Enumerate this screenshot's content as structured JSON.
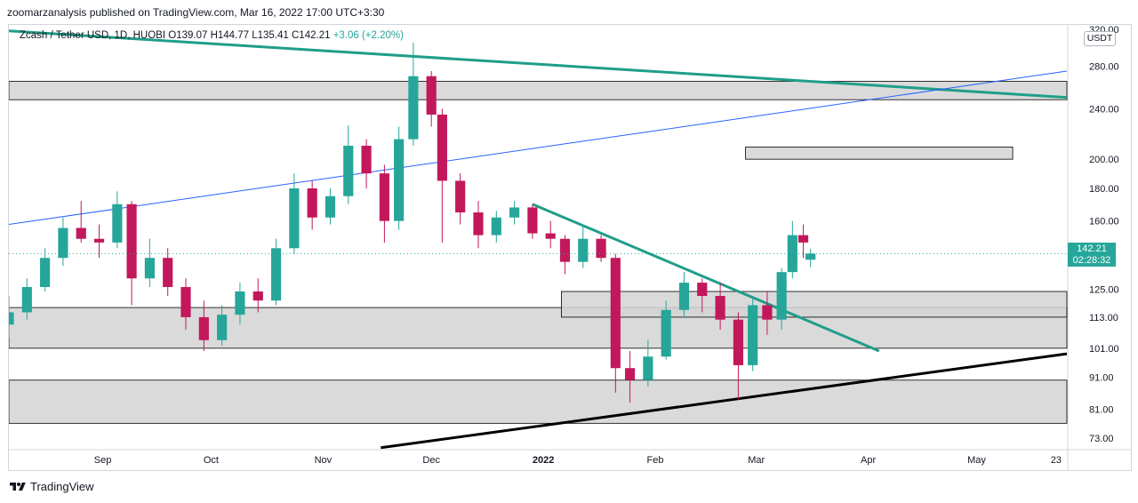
{
  "header": {
    "publisher_line": "zoomarzanalysis published on TradingView.com, Mar 16, 2022 17:00 UTC+3:30"
  },
  "legend": {
    "symbol": "Zcash / Tether USD, 1D, HUOBI",
    "ohlc": "O139.07  H144.77  L135.41  C142.21",
    "change": "+3.06 (+2.20%)"
  },
  "price_axis": {
    "unit": "USDT",
    "last_price": "142.21",
    "countdown": "02:28:32"
  },
  "footer": {
    "brand": "TradingView",
    "logo_icon": "tradingview-logo-icon"
  },
  "colors": {
    "up": "#26a69a",
    "down": "#ef5350",
    "down_wick": "#c2185b",
    "trendline_green": "#1f9e89",
    "trendline_blue": "#2962ff",
    "trendline_black": "#000000",
    "zone_fill": "#d4d4d4"
  },
  "chart_data": {
    "type": "candlestick",
    "y_scale": "log",
    "ylim": [
      70,
      325
    ],
    "y_ticks": [
      320,
      280,
      240,
      200,
      180,
      160,
      125,
      113,
      101,
      91,
      81,
      73
    ],
    "x_ticks": [
      "Sep",
      "Oct",
      "Nov",
      "Dec",
      "2022",
      "Feb",
      "Mar",
      "Apr",
      "May",
      "23"
    ],
    "x_range": [
      "2021-08-06",
      "2022-05-26"
    ],
    "last_close": 142.21,
    "candles": [
      {
        "date": "2021-08-06",
        "o": 110,
        "h": 122,
        "l": 105,
        "c": 115
      },
      {
        "date": "2021-08-11",
        "o": 115,
        "h": 130,
        "l": 112,
        "c": 126
      },
      {
        "date": "2021-08-16",
        "o": 126,
        "h": 145,
        "l": 124,
        "c": 140
      },
      {
        "date": "2021-08-21",
        "o": 140,
        "h": 162,
        "l": 136,
        "c": 156
      },
      {
        "date": "2021-08-26",
        "o": 156,
        "h": 172,
        "l": 148,
        "c": 150
      },
      {
        "date": "2021-08-31",
        "o": 150,
        "h": 158,
        "l": 140,
        "c": 148
      },
      {
        "date": "2021-09-05",
        "o": 148,
        "h": 178,
        "l": 145,
        "c": 170
      },
      {
        "date": "2021-09-09",
        "o": 170,
        "h": 172,
        "l": 118,
        "c": 130
      },
      {
        "date": "2021-09-14",
        "o": 130,
        "h": 150,
        "l": 126,
        "c": 140
      },
      {
        "date": "2021-09-19",
        "o": 140,
        "h": 145,
        "l": 122,
        "c": 126
      },
      {
        "date": "2021-09-24",
        "o": 126,
        "h": 130,
        "l": 108,
        "c": 113
      },
      {
        "date": "2021-09-29",
        "o": 113,
        "h": 120,
        "l": 100,
        "c": 104
      },
      {
        "date": "2021-10-04",
        "o": 104,
        "h": 118,
        "l": 102,
        "c": 114
      },
      {
        "date": "2021-10-09",
        "o": 114,
        "h": 128,
        "l": 110,
        "c": 124
      },
      {
        "date": "2021-10-14",
        "o": 124,
        "h": 130,
        "l": 115,
        "c": 120
      },
      {
        "date": "2021-10-19",
        "o": 120,
        "h": 150,
        "l": 118,
        "c": 145
      },
      {
        "date": "2021-10-24",
        "o": 145,
        "h": 190,
        "l": 142,
        "c": 180
      },
      {
        "date": "2021-10-29",
        "o": 180,
        "h": 185,
        "l": 155,
        "c": 162
      },
      {
        "date": "2021-11-03",
        "o": 162,
        "h": 180,
        "l": 158,
        "c": 175
      },
      {
        "date": "2021-11-08",
        "o": 175,
        "h": 226,
        "l": 170,
        "c": 210
      },
      {
        "date": "2021-11-13",
        "o": 210,
        "h": 215,
        "l": 180,
        "c": 190
      },
      {
        "date": "2021-11-18",
        "o": 190,
        "h": 196,
        "l": 148,
        "c": 160
      },
      {
        "date": "2021-11-22",
        "o": 160,
        "h": 225,
        "l": 155,
        "c": 215
      },
      {
        "date": "2021-11-26",
        "o": 215,
        "h": 305,
        "l": 210,
        "c": 270
      },
      {
        "date": "2021-12-01",
        "o": 270,
        "h": 275,
        "l": 225,
        "c": 235
      },
      {
        "date": "2021-12-04",
        "o": 235,
        "h": 240,
        "l": 148,
        "c": 185
      },
      {
        "date": "2021-12-09",
        "o": 185,
        "h": 190,
        "l": 158,
        "c": 165
      },
      {
        "date": "2021-12-14",
        "o": 165,
        "h": 172,
        "l": 145,
        "c": 152
      },
      {
        "date": "2021-12-19",
        "o": 152,
        "h": 166,
        "l": 148,
        "c": 162
      },
      {
        "date": "2021-12-24",
        "o": 162,
        "h": 172,
        "l": 158,
        "c": 168
      },
      {
        "date": "2021-12-29",
        "o": 168,
        "h": 170,
        "l": 150,
        "c": 153
      },
      {
        "date": "2022-01-03",
        "o": 153,
        "h": 160,
        "l": 145,
        "c": 150
      },
      {
        "date": "2022-01-07",
        "o": 150,
        "h": 152,
        "l": 132,
        "c": 138
      },
      {
        "date": "2022-01-12",
        "o": 138,
        "h": 158,
        "l": 135,
        "c": 150
      },
      {
        "date": "2022-01-17",
        "o": 150,
        "h": 152,
        "l": 138,
        "c": 140
      },
      {
        "date": "2022-01-21",
        "o": 140,
        "h": 142,
        "l": 86,
        "c": 94
      },
      {
        "date": "2022-01-25",
        "o": 94,
        "h": 100,
        "l": 83,
        "c": 90
      },
      {
        "date": "2022-01-30",
        "o": 90,
        "h": 104,
        "l": 88,
        "c": 98
      },
      {
        "date": "2022-02-04",
        "o": 98,
        "h": 120,
        "l": 97,
        "c": 116
      },
      {
        "date": "2022-02-09",
        "o": 116,
        "h": 133,
        "l": 113,
        "c": 128
      },
      {
        "date": "2022-02-14",
        "o": 128,
        "h": 130,
        "l": 115,
        "c": 122
      },
      {
        "date": "2022-02-19",
        "o": 122,
        "h": 128,
        "l": 108,
        "c": 112
      },
      {
        "date": "2022-02-24",
        "o": 112,
        "h": 115,
        "l": 84,
        "c": 95
      },
      {
        "date": "2022-02-28",
        "o": 95,
        "h": 122,
        "l": 93,
        "c": 118
      },
      {
        "date": "2022-03-04",
        "o": 118,
        "h": 124,
        "l": 106,
        "c": 112
      },
      {
        "date": "2022-03-08",
        "o": 112,
        "h": 135,
        "l": 108,
        "c": 133
      },
      {
        "date": "2022-03-11",
        "o": 133,
        "h": 160,
        "l": 130,
        "c": 152
      },
      {
        "date": "2022-03-14",
        "o": 152,
        "h": 158,
        "l": 140,
        "c": 148
      },
      {
        "date": "2022-03-16",
        "o": 139.07,
        "h": 144.77,
        "l": 135.41,
        "c": 142.21
      }
    ],
    "zones": [
      {
        "from_date": "2021-08-06",
        "to_date": "2022-05-26",
        "y_low": 248,
        "y_high": 265
      },
      {
        "from_date": "2021-08-06",
        "to_date": "2022-05-26",
        "y_low": 101,
        "y_high": 117
      },
      {
        "from_date": "2021-08-06",
        "to_date": "2022-05-26",
        "y_low": 77,
        "y_high": 90
      },
      {
        "from_date": "2022-01-06",
        "to_date": "2022-05-26",
        "y_low": 113,
        "y_high": 124
      },
      {
        "from_date": "2022-02-26",
        "to_date": "2022-05-11",
        "y_low": 200,
        "y_high": 209
      }
    ],
    "trendlines": [
      {
        "color": "trendline_green",
        "width": 3,
        "from": [
          "2021-08-06",
          318
        ],
        "to": [
          "2022-05-26",
          250
        ]
      },
      {
        "color": "trendline_blue",
        "width": 1,
        "from": [
          "2021-08-06",
          158
        ],
        "to": [
          "2022-05-26",
          275
        ]
      },
      {
        "color": "trendline_green",
        "width": 3,
        "from": [
          "2021-12-29",
          170
        ],
        "to": [
          "2022-04-04",
          100
        ]
      },
      {
        "color": "trendline_black",
        "width": 3,
        "from": [
          "2021-11-17",
          70.5
        ],
        "to": [
          "2022-05-26",
          99
        ]
      }
    ]
  }
}
